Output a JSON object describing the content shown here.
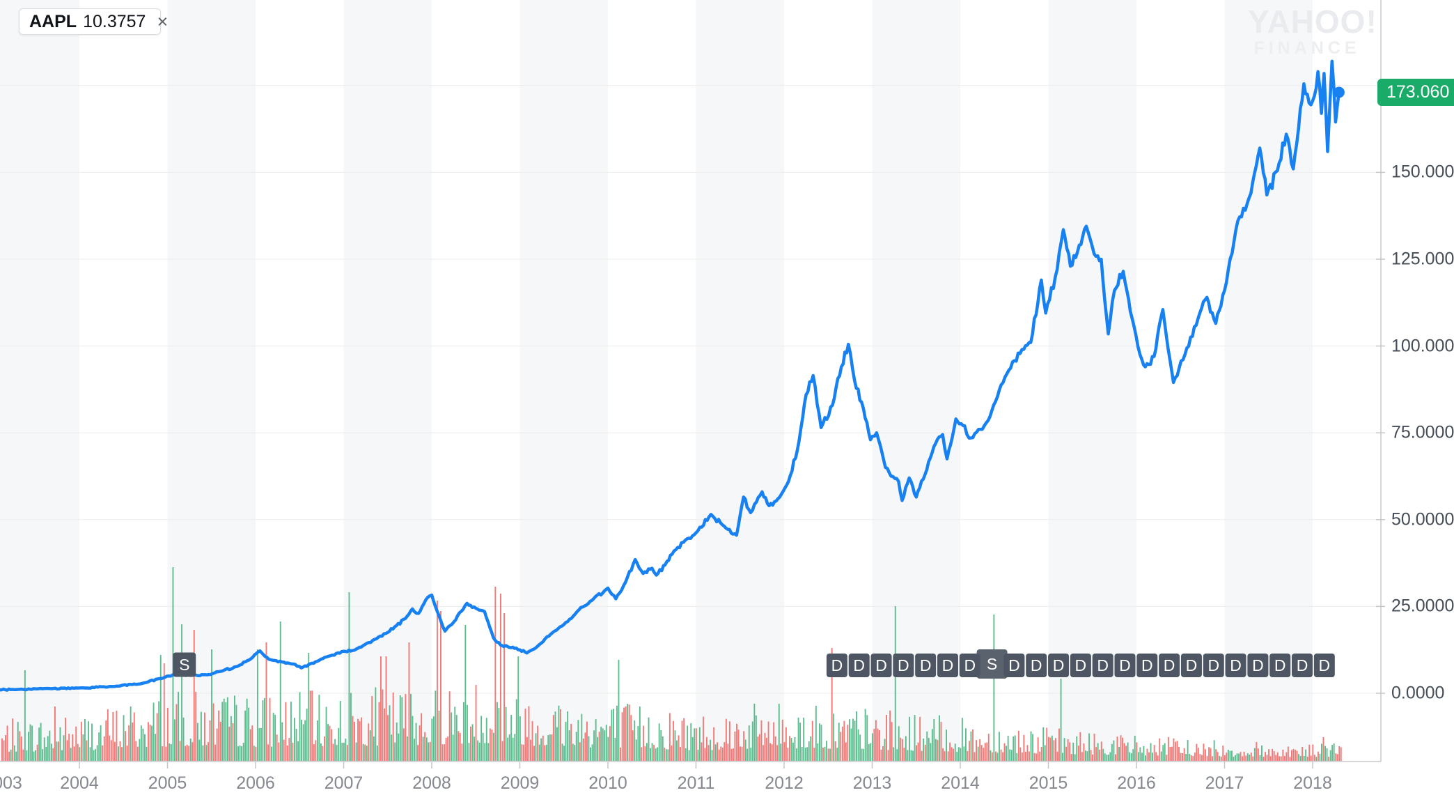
{
  "legend": {
    "symbol": "AAPL",
    "value": "10.3757",
    "close_label": "×",
    "accent_color": "#1589f8"
  },
  "watermark": {
    "line1": "YAHOO!",
    "line2": "FINANCE"
  },
  "price_badge": {
    "label": "173.060",
    "color": "#19ab67"
  },
  "y_axis": {
    "labels": [
      {
        "text": "150.000",
        "value": 150
      },
      {
        "text": "125.000",
        "value": 125
      },
      {
        "text": "100.000",
        "value": 100
      },
      {
        "text": "75.0000",
        "value": 75
      },
      {
        "text": "50.0000",
        "value": 50
      },
      {
        "text": "25.0000",
        "value": 25
      },
      {
        "text": "0.0000",
        "value": 0
      }
    ]
  },
  "x_axis": {
    "years": [
      2003,
      2004,
      2005,
      2006,
      2007,
      2008,
      2009,
      2010,
      2011,
      2012,
      2013,
      2014,
      2015,
      2016,
      2017,
      2018
    ]
  },
  "markers": {
    "split_label": "S",
    "dividend_label": "D",
    "splits": [
      {
        "year": 2005.16
      },
      {
        "year": 2014.36
      }
    ],
    "dividends": {
      "start_year": 2012.6,
      "interval_years": 0.2515,
      "count": 23,
      "split_slot": 7
    }
  },
  "colors": {
    "line": "#1781f2",
    "dot": "#1781f2",
    "vol_up": "#41b27b",
    "vol_down": "#f2625f",
    "band": "#f6f7f8",
    "grid": "#ececec",
    "axis": "#c6c9cc",
    "tick": "#c2c6ca",
    "badge_dark": "#4d5662",
    "badge_light": "#5a626d"
  },
  "chart_data": {
    "type": "line",
    "symbol": "AAPL",
    "current_price": 173.06,
    "x_range": [
      2003,
      2018.35
    ],
    "y_ticks": [
      0,
      25,
      50,
      75,
      100,
      125,
      150
    ],
    "hidden_y_tick": 175,
    "y_tick_labels": [
      "0.0000",
      "25.0000",
      "50.0000",
      "75.0000",
      "100.000",
      "125.000",
      "150.000"
    ],
    "legend_position": "top-left",
    "grid": "horizontal",
    "series": [
      {
        "name": "AAPL",
        "points": [
          [
            2003.0,
            1.02
          ],
          [
            2003.3,
            1.1
          ],
          [
            2003.6,
            1.35
          ],
          [
            2004.0,
            1.52
          ],
          [
            2004.4,
            1.95
          ],
          [
            2004.7,
            2.75
          ],
          [
            2004.95,
            4.4
          ],
          [
            2005.1,
            5.6
          ],
          [
            2005.25,
            5.15
          ],
          [
            2005.45,
            5.3
          ],
          [
            2005.6,
            6.3
          ],
          [
            2005.8,
            7.8
          ],
          [
            2005.95,
            10.0
          ],
          [
            2006.05,
            12.2
          ],
          [
            2006.15,
            9.8
          ],
          [
            2006.3,
            9.0
          ],
          [
            2006.45,
            8.3
          ],
          [
            2006.52,
            7.3
          ],
          [
            2006.7,
            9.2
          ],
          [
            2006.85,
            10.8
          ],
          [
            2007.0,
            12.1
          ],
          [
            2007.1,
            12.3
          ],
          [
            2007.2,
            13.3
          ],
          [
            2007.35,
            15.5
          ],
          [
            2007.5,
            17.5
          ],
          [
            2007.6,
            19.5
          ],
          [
            2007.7,
            21.5
          ],
          [
            2007.78,
            24.3
          ],
          [
            2007.85,
            23.0
          ],
          [
            2007.95,
            27.5
          ],
          [
            2008.0,
            28.3
          ],
          [
            2008.08,
            22.5
          ],
          [
            2008.15,
            17.9
          ],
          [
            2008.25,
            20.5
          ],
          [
            2008.4,
            25.9
          ],
          [
            2008.5,
            24.5
          ],
          [
            2008.6,
            23.5
          ],
          [
            2008.7,
            16.0
          ],
          [
            2008.78,
            13.9
          ],
          [
            2008.88,
            13.2
          ],
          [
            2009.0,
            12.5
          ],
          [
            2009.08,
            11.6
          ],
          [
            2009.2,
            13.5
          ],
          [
            2009.35,
            17.0
          ],
          [
            2009.5,
            19.8
          ],
          [
            2009.65,
            23.5
          ],
          [
            2009.8,
            26.5
          ],
          [
            2010.0,
            30.3
          ],
          [
            2010.09,
            27.2
          ],
          [
            2010.2,
            32.0
          ],
          [
            2010.31,
            38.5
          ],
          [
            2010.4,
            34.5
          ],
          [
            2010.5,
            36.0
          ],
          [
            2010.55,
            34.0
          ],
          [
            2010.65,
            37.0
          ],
          [
            2010.75,
            41.0
          ],
          [
            2010.9,
            44.5
          ],
          [
            2011.0,
            46.2
          ],
          [
            2011.17,
            51.5
          ],
          [
            2011.3,
            48.5
          ],
          [
            2011.46,
            45.5
          ],
          [
            2011.54,
            56.5
          ],
          [
            2011.62,
            52.0
          ],
          [
            2011.75,
            58.0
          ],
          [
            2011.83,
            54.0
          ],
          [
            2011.95,
            56.5
          ],
          [
            2012.05,
            61.0
          ],
          [
            2012.15,
            70.0
          ],
          [
            2012.25,
            86.0
          ],
          [
            2012.33,
            91.5
          ],
          [
            2012.42,
            76.5
          ],
          [
            2012.55,
            83.0
          ],
          [
            2012.65,
            94.0
          ],
          [
            2012.73,
            100.5
          ],
          [
            2012.8,
            90.0
          ],
          [
            2012.9,
            82.0
          ],
          [
            2012.98,
            73.0
          ],
          [
            2013.05,
            75.0
          ],
          [
            2013.15,
            65.0
          ],
          [
            2013.3,
            61.0
          ],
          [
            2013.34,
            55.5
          ],
          [
            2013.42,
            62.0
          ],
          [
            2013.5,
            56.5
          ],
          [
            2013.6,
            63.0
          ],
          [
            2013.7,
            71.0
          ],
          [
            2013.8,
            74.5
          ],
          [
            2013.85,
            67.5
          ],
          [
            2013.95,
            79.0
          ],
          [
            2014.05,
            77.0
          ],
          [
            2014.1,
            73.5
          ],
          [
            2014.25,
            76.0
          ],
          [
            2014.4,
            84.0
          ],
          [
            2014.55,
            93.0
          ],
          [
            2014.7,
            99.0
          ],
          [
            2014.8,
            101.0
          ],
          [
            2014.92,
            119.0
          ],
          [
            2014.97,
            109.5
          ],
          [
            2015.1,
            122.0
          ],
          [
            2015.17,
            133.5
          ],
          [
            2015.25,
            123.0
          ],
          [
            2015.33,
            127.0
          ],
          [
            2015.43,
            134.5
          ],
          [
            2015.52,
            126.5
          ],
          [
            2015.6,
            125.0
          ],
          [
            2015.68,
            103.5
          ],
          [
            2015.75,
            116.0
          ],
          [
            2015.85,
            121.5
          ],
          [
            2015.95,
            108.0
          ],
          [
            2016.04,
            97.5
          ],
          [
            2016.1,
            94.0
          ],
          [
            2016.2,
            97.0
          ],
          [
            2016.3,
            110.5
          ],
          [
            2016.42,
            89.5
          ],
          [
            2016.55,
            97.5
          ],
          [
            2016.7,
            108.0
          ],
          [
            2016.8,
            114.0
          ],
          [
            2016.9,
            106.5
          ],
          [
            2017.0,
            116.0
          ],
          [
            2017.15,
            136.0
          ],
          [
            2017.3,
            144.0
          ],
          [
            2017.4,
            157.0
          ],
          [
            2017.48,
            143.5
          ],
          [
            2017.6,
            150.5
          ],
          [
            2017.7,
            161.0
          ],
          [
            2017.78,
            151.0
          ],
          [
            2017.9,
            175.5
          ],
          [
            2017.96,
            170.0
          ],
          [
            2018.02,
            172.0
          ],
          [
            2018.06,
            179.0
          ],
          [
            2018.1,
            167.0
          ],
          [
            2018.13,
            178.5
          ],
          [
            2018.17,
            156.0
          ],
          [
            2018.22,
            182.0
          ],
          [
            2018.26,
            164.5
          ],
          [
            2018.3,
            173.06
          ]
        ]
      }
    ],
    "volume": {
      "envelope": [
        [
          2003,
          55
        ],
        [
          2004,
          65
        ],
        [
          2004.9,
          92
        ],
        [
          2005.3,
          95
        ],
        [
          2006,
          92
        ],
        [
          2007,
          96
        ],
        [
          2008,
          105
        ],
        [
          2008.8,
          118
        ],
        [
          2009.2,
          95
        ],
        [
          2010,
          85
        ],
        [
          2011,
          68
        ],
        [
          2012,
          82
        ],
        [
          2013,
          72
        ],
        [
          2014,
          58
        ],
        [
          2015,
          46
        ],
        [
          2016,
          36
        ],
        [
          2017,
          27
        ],
        [
          2018,
          24
        ],
        [
          2018.35,
          30
        ]
      ],
      "spikes": [
        [
          2003.38,
          130,
          "g"
        ],
        [
          2003.73,
          78,
          "r"
        ],
        [
          2004.92,
          152,
          "g"
        ],
        [
          2004.96,
          140,
          "r"
        ],
        [
          2005.06,
          278,
          "g"
        ],
        [
          2005.16,
          196,
          "g"
        ],
        [
          2005.3,
          188,
          "r"
        ],
        [
          2005.5,
          160,
          "g"
        ],
        [
          2006.03,
          160,
          "g"
        ],
        [
          2006.13,
          170,
          "r"
        ],
        [
          2006.29,
          200,
          "g"
        ],
        [
          2006.6,
          155,
          "g"
        ],
        [
          2007.06,
          242,
          "g"
        ],
        [
          2007.43,
          150,
          "r"
        ],
        [
          2007.49,
          150,
          "r"
        ],
        [
          2007.75,
          170,
          "r"
        ],
        [
          2008.06,
          230,
          "r"
        ],
        [
          2008.11,
          215,
          "r"
        ],
        [
          2008.39,
          195,
          "g"
        ],
        [
          2008.73,
          250,
          "r"
        ],
        [
          2008.78,
          240,
          "r"
        ],
        [
          2008.82,
          212,
          "r"
        ],
        [
          2008.99,
          150,
          "g"
        ],
        [
          2010.13,
          145,
          "g"
        ],
        [
          2012.55,
          162,
          "r"
        ],
        [
          2013.27,
          222,
          "g"
        ],
        [
          2014.39,
          210,
          "g"
        ],
        [
          2015.14,
          118,
          "g"
        ],
        [
          2018.12,
          34,
          "r"
        ]
      ]
    }
  }
}
